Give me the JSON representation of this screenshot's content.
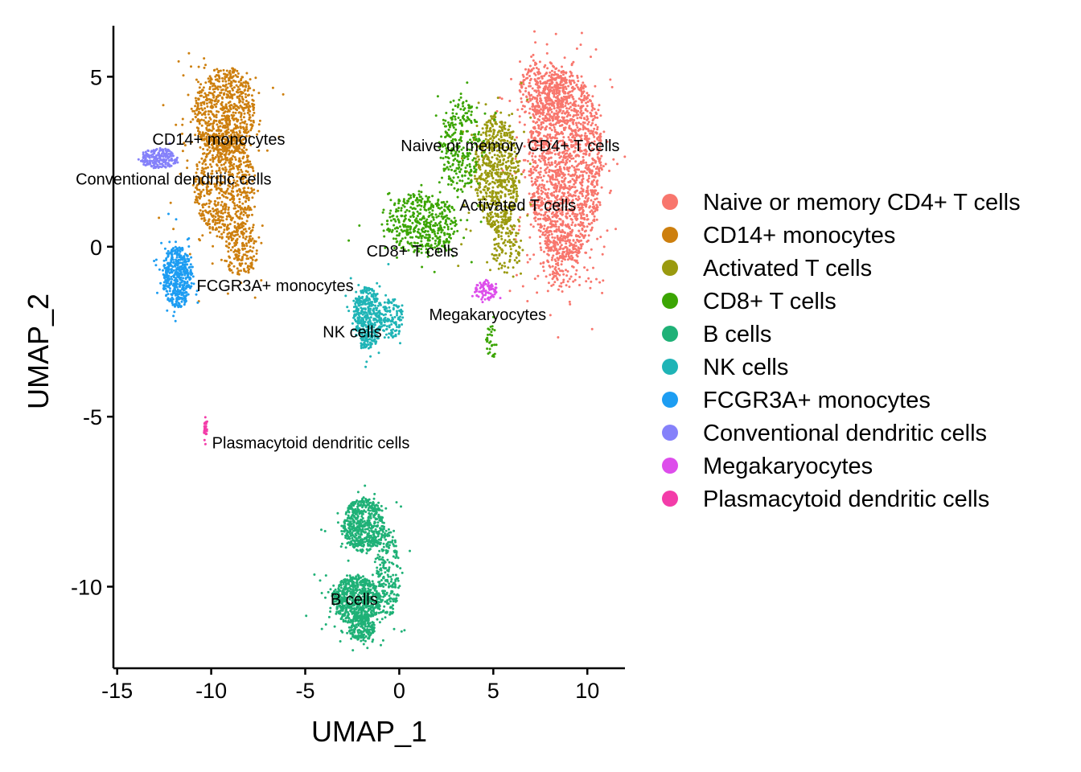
{
  "chart_data": {
    "type": "scatter",
    "xlabel": "UMAP_1",
    "ylabel": "UMAP_2",
    "xlim": [
      -15.2,
      12
    ],
    "ylim": [
      -12.4,
      6.5
    ],
    "x_ticks": [
      -15,
      -10,
      -5,
      0,
      5,
      10
    ],
    "x_tick_labels": [
      "-15",
      "-10",
      "-5",
      "0",
      "5",
      "10"
    ],
    "y_ticks": [
      5,
      0,
      -5,
      -10
    ],
    "y_tick_labels": [
      "5",
      "0",
      "-5",
      "-10"
    ],
    "grid": false,
    "legend_position": "right",
    "series": [
      {
        "name": "Naive or memory CD4+ T cells",
        "color": "#F8766D",
        "label_at": [
          5.9,
          2.97
        ],
        "blobs": [
          {
            "cx": 8.8,
            "cy": 2.4,
            "rx": 2.0,
            "ry": 2.8,
            "n": 1700
          },
          {
            "cx": 7.7,
            "cy": 4.6,
            "rx": 1.3,
            "ry": 0.9,
            "n": 300
          },
          {
            "cx": 8.6,
            "cy": -0.4,
            "rx": 1.0,
            "ry": 0.9,
            "n": 160
          }
        ]
      },
      {
        "name": "CD14+ monocytes",
        "color": "#CD7F0E",
        "label_at": [
          -9.6,
          3.17
        ],
        "blobs": [
          {
            "cx": -9.3,
            "cy": 4.0,
            "rx": 1.6,
            "ry": 1.3,
            "n": 700
          },
          {
            "cx": -9.3,
            "cy": 1.8,
            "rx": 1.6,
            "ry": 1.6,
            "n": 700
          },
          {
            "cx": -8.4,
            "cy": -0.1,
            "rx": 0.9,
            "ry": 0.8,
            "n": 180
          }
        ]
      },
      {
        "name": "Activated T cells",
        "color": "#9A9A0F",
        "label_at": [
          6.3,
          1.22
        ],
        "blobs": [
          {
            "cx": 5.2,
            "cy": 2.2,
            "rx": 1.2,
            "ry": 1.7,
            "n": 650
          },
          {
            "cx": 5.7,
            "cy": 0.0,
            "rx": 0.8,
            "ry": 0.8,
            "n": 120
          }
        ]
      },
      {
        "name": "CD8+ T cells",
        "color": "#3BA503",
        "label_at": [
          0.7,
          -0.12
        ],
        "blobs": [
          {
            "cx": 1.2,
            "cy": 0.7,
            "rx": 1.9,
            "ry": 0.9,
            "n": 450
          },
          {
            "cx": 3.2,
            "cy": 3.0,
            "rx": 1.1,
            "ry": 1.4,
            "n": 280
          },
          {
            "cx": 4.9,
            "cy": -2.8,
            "rx": 0.3,
            "ry": 0.5,
            "n": 30
          }
        ]
      },
      {
        "name": "B cells",
        "color": "#1FB177",
        "label_at": [
          -2.4,
          -10.37
        ],
        "blobs": [
          {
            "cx": -1.9,
            "cy": -8.2,
            "rx": 1.1,
            "ry": 0.8,
            "n": 550
          },
          {
            "cx": -2.3,
            "cy": -10.4,
            "rx": 1.3,
            "ry": 0.7,
            "n": 700
          },
          {
            "cx": -2.0,
            "cy": -11.2,
            "rx": 0.7,
            "ry": 0.4,
            "n": 200
          },
          {
            "cx": -0.6,
            "cy": -9.6,
            "rx": 0.6,
            "ry": 1.3,
            "n": 220
          }
        ]
      },
      {
        "name": "NK cells",
        "color": "#1FB4B6",
        "label_at": [
          -2.5,
          -2.5
        ],
        "blobs": [
          {
            "cx": -1.7,
            "cy": -2.1,
            "rx": 0.8,
            "ry": 0.9,
            "n": 420
          },
          {
            "cx": -0.4,
            "cy": -2.1,
            "rx": 0.6,
            "ry": 0.6,
            "n": 120
          }
        ]
      },
      {
        "name": "FCGR3A+ monocytes",
        "color": "#1D9DF2",
        "label_at": [
          -6.6,
          -1.14
        ],
        "blobs": [
          {
            "cx": -11.8,
            "cy": -0.9,
            "rx": 0.8,
            "ry": 0.9,
            "n": 480
          }
        ]
      },
      {
        "name": "Conventional dendritic cells",
        "color": "#8581FA",
        "label_at": [
          -12.0,
          1.99
        ],
        "blobs": [
          {
            "cx": -12.8,
            "cy": 2.6,
            "rx": 1.0,
            "ry": 0.3,
            "n": 200
          }
        ]
      },
      {
        "name": "Megakaryocytes",
        "color": "#DD4DEB",
        "label_at": [
          4.7,
          -1.99
        ],
        "blobs": [
          {
            "cx": 4.6,
            "cy": -1.3,
            "rx": 0.6,
            "ry": 0.3,
            "n": 80
          }
        ]
      },
      {
        "name": "Plasmacytoid dendritic cells",
        "color": "#F33CA9",
        "label_at": [
          -4.7,
          -5.76
        ],
        "blobs": [
          {
            "cx": -10.3,
            "cy": -5.3,
            "rx": 0.1,
            "ry": 0.3,
            "n": 30
          }
        ]
      }
    ]
  }
}
